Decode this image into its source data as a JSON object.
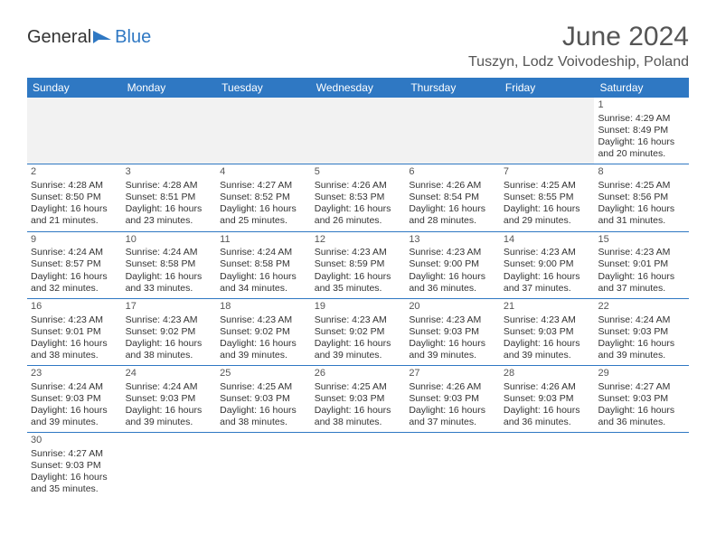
{
  "brand": {
    "general": "General",
    "blue": "Blue"
  },
  "header": {
    "month_title": "June 2024",
    "location": "Tuszyn, Lodz Voivodeship, Poland"
  },
  "colors": {
    "header_bg": "#2f78c3",
    "header_text": "#ffffff",
    "row_border": "#2f78c3",
    "blank_bg": "#f2f2f2",
    "body_text": "#333333",
    "title_text": "#555555"
  },
  "weekdays": [
    "Sunday",
    "Monday",
    "Tuesday",
    "Wednesday",
    "Thursday",
    "Friday",
    "Saturday"
  ],
  "leading_blanks": 6,
  "days": [
    {
      "n": "1",
      "sunrise": "4:29 AM",
      "sunset": "8:49 PM",
      "dl_h": "16",
      "dl_m": "20"
    },
    {
      "n": "2",
      "sunrise": "4:28 AM",
      "sunset": "8:50 PM",
      "dl_h": "16",
      "dl_m": "21"
    },
    {
      "n": "3",
      "sunrise": "4:28 AM",
      "sunset": "8:51 PM",
      "dl_h": "16",
      "dl_m": "23"
    },
    {
      "n": "4",
      "sunrise": "4:27 AM",
      "sunset": "8:52 PM",
      "dl_h": "16",
      "dl_m": "25"
    },
    {
      "n": "5",
      "sunrise": "4:26 AM",
      "sunset": "8:53 PM",
      "dl_h": "16",
      "dl_m": "26"
    },
    {
      "n": "6",
      "sunrise": "4:26 AM",
      "sunset": "8:54 PM",
      "dl_h": "16",
      "dl_m": "28"
    },
    {
      "n": "7",
      "sunrise": "4:25 AM",
      "sunset": "8:55 PM",
      "dl_h": "16",
      "dl_m": "29"
    },
    {
      "n": "8",
      "sunrise": "4:25 AM",
      "sunset": "8:56 PM",
      "dl_h": "16",
      "dl_m": "31"
    },
    {
      "n": "9",
      "sunrise": "4:24 AM",
      "sunset": "8:57 PM",
      "dl_h": "16",
      "dl_m": "32"
    },
    {
      "n": "10",
      "sunrise": "4:24 AM",
      "sunset": "8:58 PM",
      "dl_h": "16",
      "dl_m": "33"
    },
    {
      "n": "11",
      "sunrise": "4:24 AM",
      "sunset": "8:58 PM",
      "dl_h": "16",
      "dl_m": "34"
    },
    {
      "n": "12",
      "sunrise": "4:23 AM",
      "sunset": "8:59 PM",
      "dl_h": "16",
      "dl_m": "35"
    },
    {
      "n": "13",
      "sunrise": "4:23 AM",
      "sunset": "9:00 PM",
      "dl_h": "16",
      "dl_m": "36"
    },
    {
      "n": "14",
      "sunrise": "4:23 AM",
      "sunset": "9:00 PM",
      "dl_h": "16",
      "dl_m": "37"
    },
    {
      "n": "15",
      "sunrise": "4:23 AM",
      "sunset": "9:01 PM",
      "dl_h": "16",
      "dl_m": "37"
    },
    {
      "n": "16",
      "sunrise": "4:23 AM",
      "sunset": "9:01 PM",
      "dl_h": "16",
      "dl_m": "38"
    },
    {
      "n": "17",
      "sunrise": "4:23 AM",
      "sunset": "9:02 PM",
      "dl_h": "16",
      "dl_m": "38"
    },
    {
      "n": "18",
      "sunrise": "4:23 AM",
      "sunset": "9:02 PM",
      "dl_h": "16",
      "dl_m": "39"
    },
    {
      "n": "19",
      "sunrise": "4:23 AM",
      "sunset": "9:02 PM",
      "dl_h": "16",
      "dl_m": "39"
    },
    {
      "n": "20",
      "sunrise": "4:23 AM",
      "sunset": "9:03 PM",
      "dl_h": "16",
      "dl_m": "39"
    },
    {
      "n": "21",
      "sunrise": "4:23 AM",
      "sunset": "9:03 PM",
      "dl_h": "16",
      "dl_m": "39"
    },
    {
      "n": "22",
      "sunrise": "4:24 AM",
      "sunset": "9:03 PM",
      "dl_h": "16",
      "dl_m": "39"
    },
    {
      "n": "23",
      "sunrise": "4:24 AM",
      "sunset": "9:03 PM",
      "dl_h": "16",
      "dl_m": "39"
    },
    {
      "n": "24",
      "sunrise": "4:24 AM",
      "sunset": "9:03 PM",
      "dl_h": "16",
      "dl_m": "39"
    },
    {
      "n": "25",
      "sunrise": "4:25 AM",
      "sunset": "9:03 PM",
      "dl_h": "16",
      "dl_m": "38"
    },
    {
      "n": "26",
      "sunrise": "4:25 AM",
      "sunset": "9:03 PM",
      "dl_h": "16",
      "dl_m": "38"
    },
    {
      "n": "27",
      "sunrise": "4:26 AM",
      "sunset": "9:03 PM",
      "dl_h": "16",
      "dl_m": "37"
    },
    {
      "n": "28",
      "sunrise": "4:26 AM",
      "sunset": "9:03 PM",
      "dl_h": "16",
      "dl_m": "36"
    },
    {
      "n": "29",
      "sunrise": "4:27 AM",
      "sunset": "9:03 PM",
      "dl_h": "16",
      "dl_m": "36"
    },
    {
      "n": "30",
      "sunrise": "4:27 AM",
      "sunset": "9:03 PM",
      "dl_h": "16",
      "dl_m": "35"
    }
  ],
  "labels": {
    "sunrise_prefix": "Sunrise: ",
    "sunset_prefix": "Sunset: ",
    "daylight_prefix": "Daylight: ",
    "hours_word": " hours",
    "and_word": "and ",
    "minutes_word": " minutes."
  }
}
